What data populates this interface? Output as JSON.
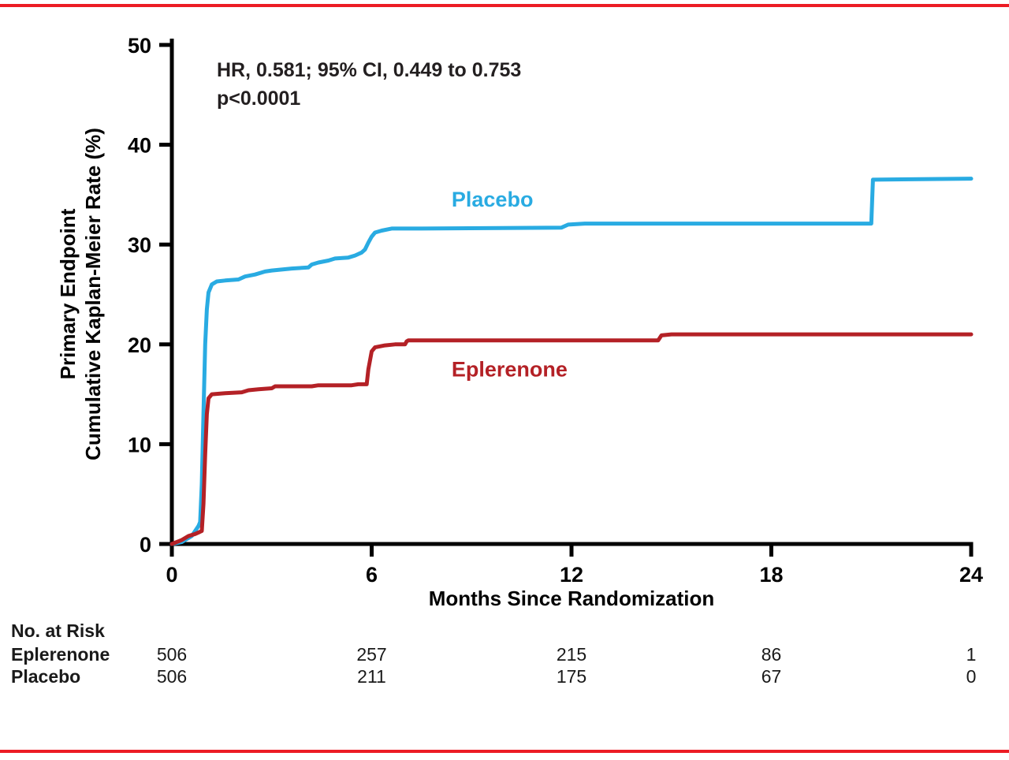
{
  "page": {
    "background": "#ffffff",
    "rule_color": "#ec1c24"
  },
  "chart_data": {
    "type": "line",
    "subtype": "kaplan-meier-step",
    "annotation": {
      "line1": "HR, 0.581; 95% CI, 0.449 to 0.753",
      "line2": "p<0.0001"
    },
    "ylabel_line1": "Primary Endpoint",
    "ylabel_line2": "Cumulative Kaplan-Meier Rate (%)",
    "xlabel": "Months Since Randomization",
    "xlim": [
      0,
      24
    ],
    "ylim": [
      0,
      50
    ],
    "xticks": [
      0,
      6,
      12,
      18,
      24
    ],
    "yticks": [
      0,
      10,
      20,
      30,
      40,
      50
    ],
    "grid": false,
    "series": [
      {
        "name": "Placebo",
        "color": "#29abe2",
        "label_position": {
          "x": 8.4,
          "y": 33.8
        },
        "points": [
          [
            0,
            0
          ],
          [
            0.3,
            0.2
          ],
          [
            0.6,
            0.8
          ],
          [
            0.8,
            1.8
          ],
          [
            0.85,
            2.2
          ],
          [
            0.9,
            6
          ],
          [
            0.95,
            13
          ],
          [
            1.0,
            20
          ],
          [
            1.05,
            23.5
          ],
          [
            1.1,
            25.2
          ],
          [
            1.2,
            26.0
          ],
          [
            1.35,
            26.3
          ],
          [
            1.6,
            26.4
          ],
          [
            2.0,
            26.5
          ],
          [
            2.2,
            26.8
          ],
          [
            2.5,
            27.0
          ],
          [
            2.8,
            27.3
          ],
          [
            3.0,
            27.4
          ],
          [
            3.3,
            27.5
          ],
          [
            3.6,
            27.6
          ],
          [
            4.1,
            27.7
          ],
          [
            4.2,
            28.0
          ],
          [
            4.4,
            28.2
          ],
          [
            4.7,
            28.4
          ],
          [
            4.9,
            28.6
          ],
          [
            5.3,
            28.7
          ],
          [
            5.5,
            28.9
          ],
          [
            5.7,
            29.2
          ],
          [
            5.8,
            29.5
          ],
          [
            5.9,
            30.2
          ],
          [
            6.0,
            30.8
          ],
          [
            6.1,
            31.2
          ],
          [
            6.3,
            31.4
          ],
          [
            6.6,
            31.6
          ],
          [
            7.5,
            31.6
          ],
          [
            11.7,
            31.7
          ],
          [
            11.9,
            32.0
          ],
          [
            12.4,
            32.1
          ],
          [
            21.0,
            32.1
          ],
          [
            21.05,
            36.5
          ],
          [
            21.1,
            36.5
          ],
          [
            24,
            36.6
          ]
        ]
      },
      {
        "name": "Eplerenone",
        "color": "#b42126",
        "label_position": {
          "x": 8.4,
          "y": 16.8
        },
        "points": [
          [
            0,
            0
          ],
          [
            0.3,
            0.4
          ],
          [
            0.5,
            0.8
          ],
          [
            0.7,
            1.0
          ],
          [
            0.9,
            1.3
          ],
          [
            0.95,
            4
          ],
          [
            1.0,
            9
          ],
          [
            1.05,
            13
          ],
          [
            1.1,
            14.6
          ],
          [
            1.2,
            15.0
          ],
          [
            1.6,
            15.1
          ],
          [
            2.1,
            15.2
          ],
          [
            2.3,
            15.4
          ],
          [
            2.6,
            15.5
          ],
          [
            3.0,
            15.6
          ],
          [
            3.1,
            15.8
          ],
          [
            4.2,
            15.8
          ],
          [
            4.4,
            15.9
          ],
          [
            5.4,
            15.9
          ],
          [
            5.6,
            16.0
          ],
          [
            5.85,
            16.0
          ],
          [
            5.9,
            17.5
          ],
          [
            6.0,
            19.3
          ],
          [
            6.1,
            19.7
          ],
          [
            6.4,
            19.9
          ],
          [
            6.7,
            20.0
          ],
          [
            7.0,
            20.0
          ],
          [
            7.05,
            20.3
          ],
          [
            7.1,
            20.4
          ],
          [
            14.6,
            20.4
          ],
          [
            14.7,
            20.9
          ],
          [
            15.0,
            21.0
          ],
          [
            24,
            21.0
          ]
        ]
      }
    ],
    "risk_table": {
      "title": "No. at Risk",
      "timepoints": [
        0,
        6,
        12,
        18,
        24
      ],
      "rows": [
        {
          "label": "Eplerenone",
          "values": [
            "506",
            "257",
            "215",
            "86",
            "1"
          ]
        },
        {
          "label": "Placebo",
          "values": [
            "506",
            "211",
            "175",
            "67",
            "0"
          ]
        }
      ]
    }
  }
}
